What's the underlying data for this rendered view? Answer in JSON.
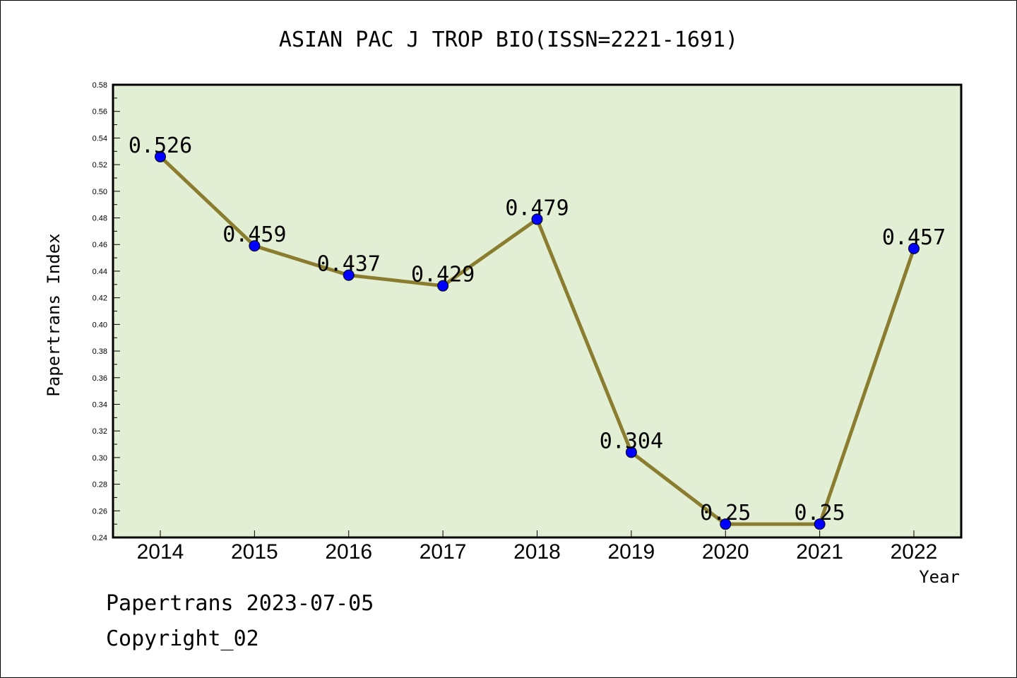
{
  "chart_data": {
    "type": "line",
    "title": "ASIAN PAC J TROP BIO(ISSN=2221-1691)",
    "xlabel": "Year",
    "ylabel": "Papertrans Index",
    "categories": [
      "2014",
      "2015",
      "2016",
      "2017",
      "2018",
      "2019",
      "2020",
      "2021",
      "2022"
    ],
    "series": [
      {
        "values": [
          0.526,
          0.459,
          0.437,
          0.429,
          0.479,
          0.304,
          0.25,
          0.25,
          0.457
        ],
        "labels": [
          "0.526",
          "0.459",
          "0.437",
          "0.429",
          "0.479",
          "0.304",
          "0.25",
          "0.25",
          "0.457"
        ]
      }
    ],
    "ylim": [
      0.24,
      0.58
    ],
    "yticks": [
      "0.24",
      "0.26",
      "0.28",
      "0.30",
      "0.32",
      "0.34",
      "0.36",
      "0.38",
      "0.40",
      "0.42",
      "0.44",
      "0.46",
      "0.48",
      "0.50",
      "0.52",
      "0.54",
      "0.56",
      "0.58"
    ],
    "grid": false,
    "legend": "none",
    "colors": {
      "plot_background": "#e2efd5",
      "line": "#8b7d2f",
      "marker": "#0000ff"
    }
  },
  "footer": {
    "line1": "Papertrans 2023-07-05",
    "line2": "Copyright_02"
  }
}
